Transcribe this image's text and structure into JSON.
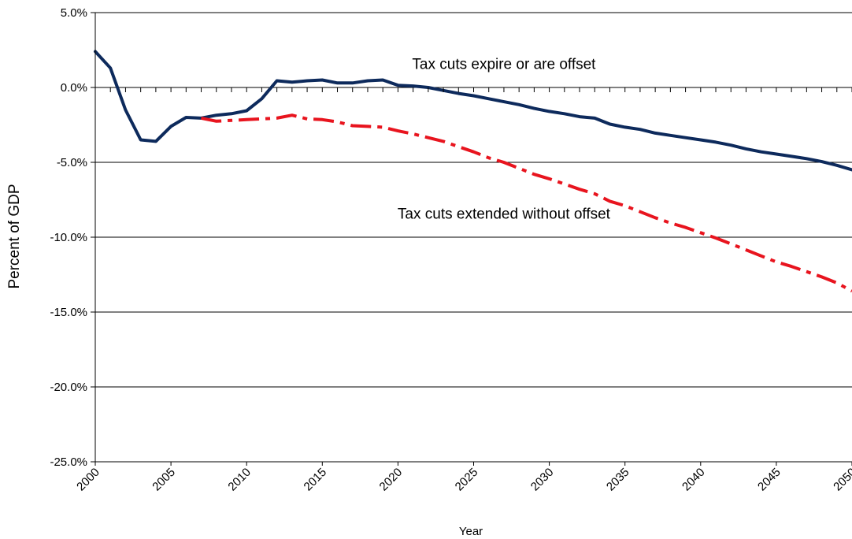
{
  "chart_data": {
    "type": "line",
    "title": "",
    "xlabel": "Year",
    "ylabel": "Percent of GDP",
    "xlim": [
      2000,
      2050
    ],
    "ylim": [
      -25.0,
      5.0
    ],
    "y_ticks": [
      5.0,
      0.0,
      -5.0,
      -10.0,
      -15.0,
      -20.0,
      -25.0
    ],
    "y_tick_labels": [
      "5.0%",
      "0.0%",
      "-5.0%",
      "-10.0%",
      "-15.0%",
      "-20.0%",
      "-25.0%"
    ],
    "x_ticks": [
      2000,
      2005,
      2010,
      2015,
      2020,
      2025,
      2030,
      2035,
      2040,
      2045,
      2050
    ],
    "x_tick_labels": [
      "2000",
      "2005",
      "2010",
      "2015",
      "2020",
      "2025",
      "2030",
      "2035",
      "2040",
      "2045",
      "2050"
    ],
    "grid": "horizontal",
    "legend": "none",
    "series": [
      {
        "color": "#0d2a5c",
        "style": "solid",
        "x": [
          2000,
          2001,
          2002,
          2003,
          2004,
          2005,
          2006,
          2007,
          2008,
          2009,
          2010,
          2011,
          2012,
          2013,
          2014,
          2015,
          2016,
          2017,
          2018,
          2019,
          2020,
          2021,
          2022,
          2023,
          2024,
          2025,
          2026,
          2027,
          2028,
          2029,
          2030,
          2031,
          2032,
          2033,
          2034,
          2035,
          2036,
          2037,
          2038,
          2039,
          2040,
          2041,
          2042,
          2043,
          2044,
          2045,
          2046,
          2047,
          2048,
          2049,
          2050
        ],
        "y": [
          2.4,
          1.3,
          -1.5,
          -3.5,
          -3.6,
          -2.6,
          -2.0,
          -2.05,
          -1.85,
          -1.75,
          -1.55,
          -0.75,
          0.45,
          0.35,
          0.45,
          0.5,
          0.3,
          0.3,
          0.45,
          0.5,
          0.15,
          0.1,
          0.0,
          -0.2,
          -0.4,
          -0.55,
          -0.75,
          -0.95,
          -1.15,
          -1.4,
          -1.6,
          -1.75,
          -1.95,
          -2.05,
          -2.45,
          -2.65,
          -2.8,
          -3.05,
          -3.2,
          -3.35,
          -3.5,
          -3.65,
          -3.85,
          -4.1,
          -4.3,
          -4.45,
          -4.6,
          -4.75,
          -4.95,
          -5.2,
          -5.5
        ]
      },
      {
        "color": "#e8141e",
        "style": "dash-dot",
        "x": [
          2007,
          2008,
          2009,
          2010,
          2011,
          2012,
          2013,
          2014,
          2015,
          2016,
          2017,
          2018,
          2019,
          2020,
          2021,
          2022,
          2023,
          2024,
          2025,
          2026,
          2027,
          2028,
          2029,
          2030,
          2031,
          2032,
          2033,
          2034,
          2035,
          2036,
          2037,
          2038,
          2039,
          2040,
          2041,
          2042,
          2043,
          2044,
          2045,
          2046,
          2047,
          2048,
          2049,
          2050
        ],
        "y": [
          -2.05,
          -2.25,
          -2.2,
          -2.15,
          -2.1,
          -2.05,
          -1.85,
          -2.1,
          -2.15,
          -2.3,
          -2.55,
          -2.6,
          -2.65,
          -2.9,
          -3.1,
          -3.35,
          -3.6,
          -3.95,
          -4.3,
          -4.7,
          -5.0,
          -5.4,
          -5.8,
          -6.1,
          -6.45,
          -6.8,
          -7.1,
          -7.6,
          -7.9,
          -8.3,
          -8.7,
          -9.05,
          -9.35,
          -9.7,
          -10.05,
          -10.45,
          -10.85,
          -11.25,
          -11.65,
          -11.95,
          -12.3,
          -12.65,
          -13.05,
          -13.6
        ]
      }
    ],
    "annotations": [
      {
        "text": "Tax cuts expire or are offset",
        "x": 2027.0,
        "y": 1.6
      },
      {
        "text": "Tax cuts extended without offset",
        "x": 2027.0,
        "y": -8.4
      }
    ]
  }
}
